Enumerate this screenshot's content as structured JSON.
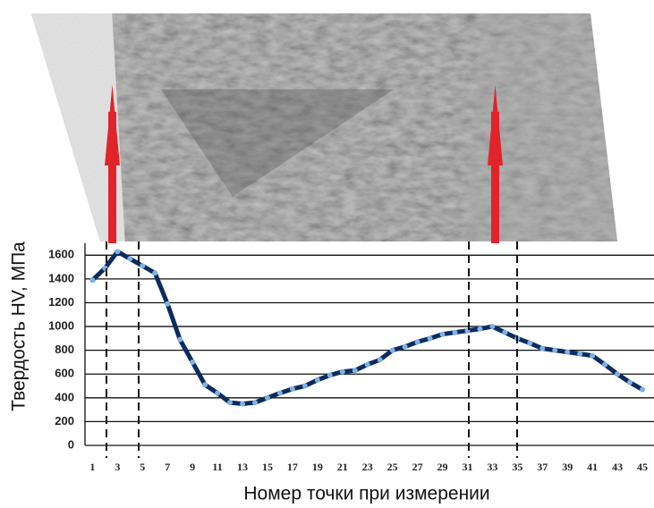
{
  "chart_data": {
    "type": "line",
    "x_label": "Номер точки при измерении",
    "y_label": "Твердость HV, МПа",
    "x": [
      1,
      2,
      3,
      4,
      5,
      6,
      7,
      8,
      9,
      10,
      11,
      12,
      13,
      14,
      15,
      16,
      17,
      18,
      19,
      20,
      21,
      22,
      23,
      24,
      25,
      26,
      27,
      28,
      29,
      30,
      31,
      32,
      33,
      34,
      35,
      36,
      37,
      38,
      39,
      40,
      41,
      42,
      43,
      44,
      45
    ],
    "series": [
      {
        "color": "#0d2b5e",
        "marker_color": "#7fb2e2",
        "values": [
          1390,
          1490,
          1630,
          1570,
          1510,
          1450,
          1190,
          890,
          700,
          510,
          440,
          360,
          350,
          360,
          400,
          440,
          475,
          500,
          550,
          590,
          620,
          630,
          680,
          720,
          800,
          830,
          870,
          900,
          935,
          950,
          965,
          980,
          1000,
          950,
          900,
          860,
          815,
          800,
          785,
          770,
          755,
          680,
          600,
          530,
          470
        ]
      }
    ],
    "xlim": [
      0.4,
      45.5
    ],
    "xticks": [
      1,
      3,
      5,
      7,
      9,
      11,
      13,
      15,
      17,
      19,
      21,
      23,
      25,
      27,
      29,
      31,
      33,
      35,
      37,
      39,
      41,
      43,
      45
    ],
    "ylim": [
      0,
      1700
    ],
    "yticks": [
      0,
      200,
      400,
      600,
      800,
      1000,
      1200,
      1400,
      1600
    ],
    "grid": true
  }
}
